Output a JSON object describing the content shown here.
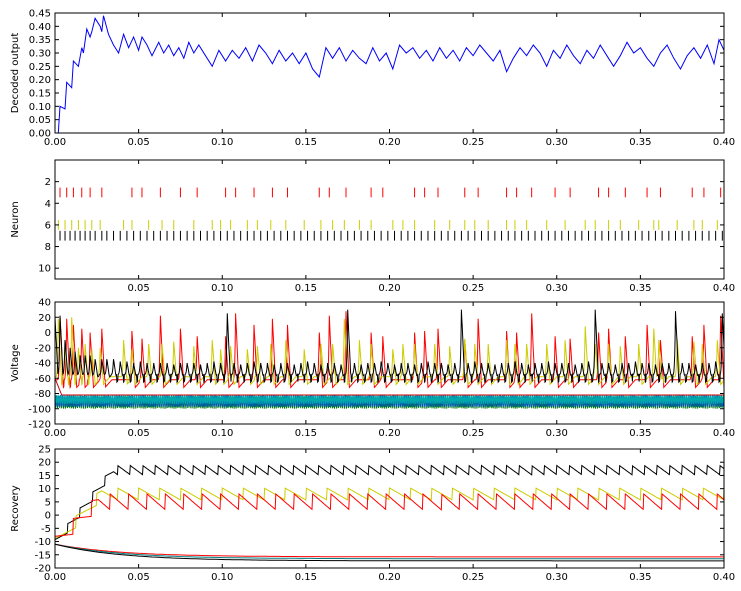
{
  "chart_data": [
    {
      "type": "line",
      "ylabel": "Decoded output",
      "xlim": [
        0.0,
        0.4
      ],
      "ylim": [
        0.0,
        0.45
      ],
      "xticks": [
        "0.00",
        "0.05",
        "0.10",
        "0.15",
        "0.20",
        "0.25",
        "0.30",
        "0.35",
        "0.40"
      ],
      "yticks": [
        "0.00",
        "0.05",
        "0.10",
        "0.15",
        "0.20",
        "0.25",
        "0.30",
        "0.35",
        "0.40",
        "0.45"
      ],
      "grid": false,
      "series": [
        {
          "color": "#0000ff",
          "x": [
            0.0,
            0.002,
            0.003,
            0.006,
            0.007,
            0.01,
            0.011,
            0.014,
            0.016,
            0.017,
            0.019,
            0.021,
            0.022,
            0.024,
            0.026,
            0.027,
            0.028,
            0.029,
            0.032,
            0.035,
            0.038,
            0.041,
            0.044,
            0.047,
            0.05,
            0.052,
            0.055,
            0.058,
            0.062,
            0.065,
            0.068,
            0.071,
            0.074,
            0.077,
            0.08,
            0.083,
            0.086,
            0.09,
            0.094,
            0.098,
            0.102,
            0.106,
            0.11,
            0.114,
            0.118,
            0.122,
            0.126,
            0.13,
            0.134,
            0.138,
            0.142,
            0.146,
            0.15,
            0.154,
            0.158,
            0.162,
            0.166,
            0.17,
            0.174,
            0.178,
            0.182,
            0.186,
            0.19,
            0.194,
            0.198,
            0.202,
            0.206,
            0.21,
            0.214,
            0.218,
            0.222,
            0.226,
            0.23,
            0.234,
            0.238,
            0.242,
            0.246,
            0.25,
            0.254,
            0.258,
            0.262,
            0.266,
            0.27,
            0.274,
            0.278,
            0.282,
            0.286,
            0.29,
            0.294,
            0.298,
            0.302,
            0.306,
            0.31,
            0.314,
            0.318,
            0.322,
            0.326,
            0.33,
            0.334,
            0.338,
            0.342,
            0.346,
            0.35,
            0.354,
            0.358,
            0.362,
            0.366,
            0.37,
            0.374,
            0.378,
            0.382,
            0.386,
            0.39,
            0.394,
            0.397,
            0.4
          ],
          "y": [
            0.0,
            0.0,
            0.1,
            0.09,
            0.19,
            0.17,
            0.27,
            0.25,
            0.32,
            0.3,
            0.39,
            0.36,
            0.38,
            0.43,
            0.41,
            0.4,
            0.38,
            0.44,
            0.37,
            0.33,
            0.3,
            0.37,
            0.32,
            0.36,
            0.31,
            0.36,
            0.33,
            0.29,
            0.34,
            0.3,
            0.33,
            0.29,
            0.32,
            0.28,
            0.34,
            0.3,
            0.33,
            0.29,
            0.25,
            0.31,
            0.27,
            0.31,
            0.28,
            0.32,
            0.27,
            0.33,
            0.3,
            0.26,
            0.31,
            0.27,
            0.3,
            0.26,
            0.3,
            0.24,
            0.21,
            0.32,
            0.28,
            0.32,
            0.27,
            0.31,
            0.28,
            0.26,
            0.32,
            0.27,
            0.3,
            0.24,
            0.33,
            0.3,
            0.32,
            0.28,
            0.31,
            0.27,
            0.32,
            0.28,
            0.31,
            0.27,
            0.32,
            0.29,
            0.33,
            0.3,
            0.27,
            0.31,
            0.23,
            0.28,
            0.32,
            0.29,
            0.33,
            0.3,
            0.25,
            0.31,
            0.28,
            0.33,
            0.29,
            0.26,
            0.31,
            0.28,
            0.33,
            0.29,
            0.25,
            0.29,
            0.34,
            0.3,
            0.32,
            0.28,
            0.25,
            0.3,
            0.33,
            0.28,
            0.24,
            0.29,
            0.32,
            0.28,
            0.33,
            0.26,
            0.35,
            0.31
          ]
        }
      ]
    },
    {
      "type": "raster",
      "ylabel": "Neuron",
      "xlim": [
        0.0,
        0.4
      ],
      "ylim": [
        11.0,
        0.0
      ],
      "xticks": [
        "0.05",
        "0.10",
        "0.15",
        "0.20",
        "0.25",
        "0.30",
        "0.35",
        "0.40"
      ],
      "yticks": [
        "2",
        "4",
        "6",
        "8",
        "10"
      ],
      "grid": false,
      "series": [
        {
          "neuron": 3,
          "color": "#ff0000",
          "spikes": [
            0.003,
            0.007,
            0.011,
            0.016,
            0.021,
            0.028,
            0.046,
            0.052,
            0.063,
            0.075,
            0.085,
            0.102,
            0.108,
            0.119,
            0.13,
            0.139,
            0.158,
            0.164,
            0.174,
            0.189,
            0.196,
            0.215,
            0.221,
            0.229,
            0.245,
            0.253,
            0.27,
            0.276,
            0.285,
            0.299,
            0.308,
            0.325,
            0.331,
            0.341,
            0.354,
            0.362,
            0.381,
            0.388,
            0.398
          ]
        },
        {
          "neuron": 6,
          "color": "#cccc00",
          "spikes": [
            0.002,
            0.006,
            0.01,
            0.014,
            0.018,
            0.022,
            0.027,
            0.041,
            0.046,
            0.056,
            0.064,
            0.071,
            0.083,
            0.094,
            0.099,
            0.105,
            0.115,
            0.121,
            0.129,
            0.138,
            0.149,
            0.159,
            0.166,
            0.173,
            0.182,
            0.189,
            0.202,
            0.208,
            0.215,
            0.227,
            0.236,
            0.245,
            0.251,
            0.259,
            0.27,
            0.275,
            0.282,
            0.294,
            0.305,
            0.317,
            0.323,
            0.331,
            0.338,
            0.349,
            0.358,
            0.361,
            0.372,
            0.382,
            0.387,
            0.396
          ]
        },
        {
          "neuron": 7,
          "color": "#000000",
          "spikes": [
            0.0,
            0.003,
            0.006,
            0.009,
            0.012,
            0.015,
            0.018,
            0.021,
            0.024,
            0.028,
            0.031,
            0.035,
            0.039,
            0.043,
            0.047,
            0.051,
            0.055,
            0.059,
            0.063,
            0.067,
            0.071,
            0.075,
            0.079,
            0.083,
            0.087,
            0.091,
            0.095,
            0.099,
            0.103,
            0.107,
            0.111,
            0.115,
            0.119,
            0.123,
            0.127,
            0.131,
            0.135,
            0.139,
            0.143,
            0.147,
            0.151,
            0.155,
            0.159,
            0.163,
            0.167,
            0.171,
            0.175,
            0.179,
            0.183,
            0.187,
            0.191,
            0.195,
            0.199,
            0.203,
            0.207,
            0.211,
            0.215,
            0.219,
            0.223,
            0.227,
            0.231,
            0.235,
            0.239,
            0.243,
            0.247,
            0.251,
            0.255,
            0.259,
            0.263,
            0.267,
            0.271,
            0.275,
            0.279,
            0.283,
            0.287,
            0.291,
            0.295,
            0.299,
            0.303,
            0.307,
            0.311,
            0.315,
            0.319,
            0.323,
            0.327,
            0.331,
            0.335,
            0.339,
            0.343,
            0.347,
            0.351,
            0.355,
            0.359,
            0.363,
            0.367,
            0.371,
            0.375,
            0.379,
            0.383,
            0.387,
            0.391,
            0.395,
            0.399
          ]
        }
      ]
    },
    {
      "type": "line",
      "ylabel": "Voltage",
      "xlim": [
        0.0,
        0.4
      ],
      "ylim": [
        -120,
        40
      ],
      "xticks": [
        "0.00",
        "0.05",
        "0.10",
        "0.15",
        "0.20",
        "0.25",
        "0.30",
        "0.35",
        "0.40"
      ],
      "yticks": [
        "-120",
        "-100",
        "-80",
        "-60",
        "-40",
        "-20",
        "0",
        "20",
        "40"
      ],
      "grid": false,
      "series": [
        {
          "color": "#ff0000",
          "model": "spiking",
          "rest": -62,
          "min": -62,
          "peaks": [
            0.003,
            0.007,
            0.011,
            0.016,
            0.021,
            0.028,
            0.046,
            0.052,
            0.063,
            0.075,
            0.085,
            0.102,
            0.108,
            0.119,
            0.13,
            0.139,
            0.158,
            0.164,
            0.174,
            0.189,
            0.196,
            0.215,
            0.221,
            0.229,
            0.245,
            0.253,
            0.27,
            0.276,
            0.285,
            0.299,
            0.308,
            0.325,
            0.331,
            0.341,
            0.354,
            0.362,
            0.381,
            0.388,
            0.398
          ],
          "peak_values": [
            22,
            18,
            10,
            5,
            0,
            5,
            2,
            -8,
            22,
            5,
            -5,
            -5,
            25,
            10,
            18,
            10,
            0,
            22,
            28,
            0,
            -5,
            0,
            2,
            5,
            -10,
            18,
            2,
            0,
            25,
            -5,
            -8,
            0,
            5,
            -5,
            10,
            -10,
            -5,
            10,
            22
          ]
        },
        {
          "color": "#cccc00",
          "model": "spiking",
          "rest": -58,
          "min": -58,
          "peaks": [
            0.002,
            0.006,
            0.01,
            0.014,
            0.018,
            0.022,
            0.027,
            0.041,
            0.046,
            0.056,
            0.064,
            0.071,
            0.083,
            0.094,
            0.099,
            0.105,
            0.115,
            0.121,
            0.129,
            0.138,
            0.149,
            0.159,
            0.166,
            0.173,
            0.182,
            0.189,
            0.202,
            0.208,
            0.215,
            0.227,
            0.236,
            0.245,
            0.251,
            0.259,
            0.27,
            0.275,
            0.282,
            0.294,
            0.305,
            0.317,
            0.323,
            0.331,
            0.338,
            0.349,
            0.358,
            0.361,
            0.372,
            0.382,
            0.387,
            0.396
          ],
          "peak_values": [
            18,
            -18,
            20,
            -20,
            -15,
            -22,
            -20,
            -10,
            -22,
            -15,
            -15,
            -12,
            -18,
            -10,
            -22,
            -18,
            -22,
            -18,
            -15,
            -10,
            -22,
            -15,
            -15,
            18,
            -10,
            -15,
            -22,
            -15,
            -15,
            -15,
            -18,
            -8,
            -15,
            -15,
            -10,
            -15,
            -15,
            -15,
            -10,
            8,
            -15,
            -15,
            -18,
            -15,
            5,
            -10,
            -8,
            -12,
            -15,
            -10
          ]
        },
        {
          "color": "#000000",
          "model": "spiking",
          "rest": -55,
          "min": -55,
          "peaks": [
            0.0,
            0.003,
            0.006,
            0.009,
            0.012,
            0.015,
            0.018,
            0.021,
            0.024,
            0.028,
            0.031,
            0.035,
            0.039,
            0.043,
            0.047,
            0.051,
            0.055,
            0.059,
            0.063,
            0.067,
            0.071,
            0.075,
            0.079,
            0.083,
            0.087,
            0.091,
            0.095,
            0.099,
            0.103,
            0.107,
            0.111,
            0.115,
            0.119,
            0.123,
            0.127,
            0.131,
            0.135,
            0.139,
            0.143,
            0.147,
            0.151,
            0.155,
            0.159,
            0.163,
            0.167,
            0.171,
            0.175,
            0.179,
            0.183,
            0.187,
            0.191,
            0.195,
            0.199,
            0.203,
            0.207,
            0.211,
            0.215,
            0.219,
            0.223,
            0.227,
            0.231,
            0.235,
            0.239,
            0.243,
            0.247,
            0.251,
            0.255,
            0.259,
            0.263,
            0.267,
            0.271,
            0.275,
            0.279,
            0.283,
            0.287,
            0.291,
            0.295,
            0.299,
            0.303,
            0.307,
            0.311,
            0.315,
            0.319,
            0.323,
            0.327,
            0.331,
            0.335,
            0.339,
            0.343,
            0.347,
            0.351,
            0.355,
            0.359,
            0.363,
            0.367,
            0.371,
            0.375,
            0.379,
            0.383,
            0.387,
            0.391,
            0.395,
            0.399
          ],
          "peak_values": [
            20,
            22,
            -10,
            -20,
            -25,
            -30,
            -30,
            -30,
            -35,
            -35,
            -35,
            -35,
            -38,
            -38,
            -40,
            -38,
            -40,
            -40,
            -40,
            -40,
            -42,
            -40,
            -40,
            -40,
            -42,
            -40,
            -38,
            -40,
            25,
            -40,
            -42,
            -40,
            -38,
            -40,
            -40,
            -42,
            -40,
            -40,
            -42,
            -40,
            -38,
            -40,
            -42,
            -40,
            -40,
            -42,
            30,
            -40,
            -42,
            -40,
            -40,
            -38,
            -40,
            -42,
            -40,
            -40,
            -42,
            -40,
            -38,
            -40,
            -40,
            -42,
            -40,
            30,
            -40,
            -38,
            -40,
            -40,
            -42,
            -40,
            -40,
            -38,
            -40,
            -42,
            -40,
            -40,
            -38,
            -40,
            -40,
            -40,
            -42,
            -40,
            -38,
            30,
            -40,
            -40,
            -42,
            -40,
            -40,
            -38,
            -40,
            -40,
            -42,
            -40,
            -40,
            28,
            -40,
            -40,
            -42,
            -40,
            -40,
            -38,
            25
          ]
        },
        {
          "color": "#008000",
          "model": "oscillation",
          "center": -92,
          "amplitude": 8,
          "period": 0.0012
        },
        {
          "color": "#0055cc",
          "model": "oscillation",
          "center": -90,
          "amplitude": 8,
          "period": 0.0013
        },
        {
          "color": "#00aaaa",
          "model": "oscillation",
          "center": -88,
          "amplitude": 6,
          "period": 0.0011
        },
        {
          "color": "#cc0000",
          "model": "flat",
          "level": -82
        }
      ]
    },
    {
      "type": "line",
      "ylabel": "Recovery",
      "xlim": [
        0.0,
        0.4
      ],
      "ylim": [
        -20,
        25
      ],
      "xticks": [
        "0.00",
        "0.05",
        "0.10",
        "0.15",
        "0.20",
        "0.25",
        "0.30",
        "0.35",
        "0.40"
      ],
      "yticks": [
        "-20",
        "-15",
        "-10",
        "-5",
        "0",
        "5",
        "10",
        "15",
        "20",
        "25"
      ],
      "grid": false,
      "series": [
        {
          "color": "#000000",
          "model": "sawtooth",
          "start": -11,
          "plateau": 17,
          "jump": 3.5,
          "period": 0.0075,
          "rise": 0.035
        },
        {
          "color": "#cccc00",
          "model": "sawtooth",
          "start": -11,
          "plateau": 8,
          "jump": 4.5,
          "period": 0.0125,
          "rise": 0.028
        },
        {
          "color": "#ff0000",
          "model": "sawtooth",
          "start": -11,
          "plateau": 5,
          "jump": 6.0,
          "period": 0.011,
          "rise": 0.026
        },
        {
          "color": "#ff0000",
          "model": "decay",
          "start": -11,
          "end": -15.8
        },
        {
          "color": "#008080",
          "model": "decay",
          "start": -11,
          "end": -16.5
        },
        {
          "color": "#000000",
          "model": "decay",
          "start": -11,
          "end": -17.3
        }
      ]
    }
  ]
}
